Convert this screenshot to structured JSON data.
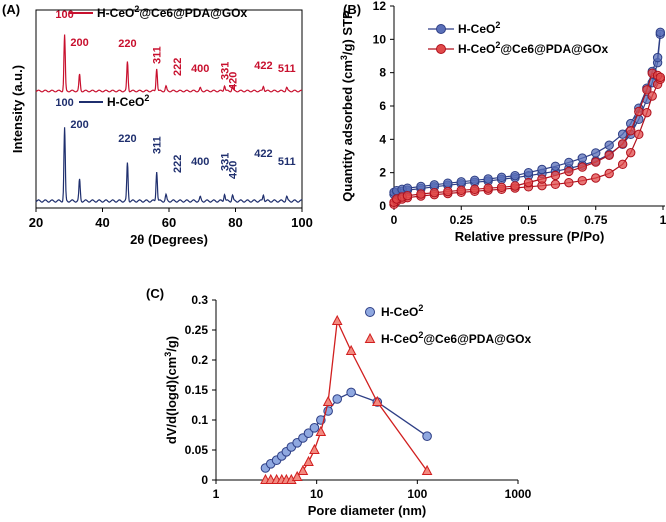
{
  "chart_data": [
    {
      "panel": "(A)",
      "type": "line",
      "title": "",
      "xlabel": "2θ (Degrees)",
      "ylabel": "Intensity (a.u.)",
      "xlim": [
        20,
        100
      ],
      "xticks": [
        "20",
        "40",
        "60",
        "80",
        "100"
      ],
      "series": [
        {
          "name": "H-CeO2@Ce6@PDA@GOx",
          "color": "#c8102e",
          "x": [
            20,
            28.6,
            33.1,
            47.5,
            56.3,
            59.1,
            69.4,
            76.7,
            79.1,
            88.4,
            95.4,
            100
          ],
          "y": [
            0,
            1.0,
            0.29,
            0.52,
            0.41,
            0.08,
            0.05,
            0.1,
            0.08,
            0.09,
            0.06,
            0
          ],
          "peak_labels": [
            "100",
            "200",
            "220",
            "311",
            "222",
            "400",
            "331",
            "420",
            "422",
            "511"
          ]
        },
        {
          "name": "H-CeO2",
          "color": "#1f2f6e",
          "x": [
            20,
            28.6,
            33.1,
            47.5,
            56.3,
            59.1,
            69.4,
            76.7,
            79.1,
            88.4,
            95.4,
            100
          ],
          "y": [
            0,
            1.0,
            0.29,
            0.52,
            0.41,
            0.08,
            0.05,
            0.1,
            0.08,
            0.09,
            0.06,
            0
          ],
          "peak_labels": [
            "100",
            "200",
            "220",
            "311",
            "222",
            "400",
            "331",
            "420",
            "422",
            "511"
          ]
        }
      ],
      "legend": [
        {
          "name": "H-CeO",
          "sub": "2",
          "tail": "@Ce6@PDA@GOx",
          "color": "#c8102e"
        },
        {
          "name": "H-CeO",
          "sub": "2",
          "tail": "",
          "color": "#1f2f6e"
        }
      ]
    },
    {
      "panel": "(B)",
      "type": "line",
      "title": "",
      "xlabel": "Relative pressure (P/Po)",
      "ylabel_parts": [
        "Quantity adsorbed (cm",
        "3",
        "/g) STP"
      ],
      "xlim": [
        0,
        1
      ],
      "ylim": [
        0,
        12
      ],
      "xticks": [
        "0",
        "0.25",
        "0.5",
        "0.75",
        "1"
      ],
      "yticks": [
        "0",
        "2",
        "4",
        "6",
        "8",
        "10",
        "12"
      ],
      "series": [
        {
          "name": "H-CeO2",
          "color": "#2e3f86",
          "fill": "#5a6fb8",
          "x": [
            0.0,
            0.01,
            0.03,
            0.05,
            0.1,
            0.15,
            0.2,
            0.25,
            0.3,
            0.35,
            0.4,
            0.45,
            0.5,
            0.55,
            0.6,
            0.65,
            0.7,
            0.75,
            0.8,
            0.85,
            0.88,
            0.91,
            0.94,
            0.96,
            0.98,
            0.99
          ],
          "y": [
            0.7,
            0.8,
            0.88,
            0.95,
            1.05,
            1.15,
            1.25,
            1.33,
            1.42,
            1.5,
            1.6,
            1.7,
            1.82,
            1.95,
            2.08,
            2.25,
            2.45,
            2.7,
            3.1,
            3.7,
            4.3,
            5.2,
            6.4,
            7.4,
            8.6,
            10.3
          ]
        },
        {
          "name": "H-CeO2@Ce6@PDA@GOx",
          "color": "#b0101c",
          "fill": "#e04a4a",
          "x": [
            0.0,
            0.01,
            0.03,
            0.05,
            0.1,
            0.15,
            0.2,
            0.25,
            0.3,
            0.35,
            0.4,
            0.45,
            0.5,
            0.55,
            0.6,
            0.65,
            0.7,
            0.75,
            0.8,
            0.85,
            0.88,
            0.91,
            0.94,
            0.96,
            0.98,
            0.99
          ],
          "y": [
            0.1,
            0.3,
            0.42,
            0.5,
            0.6,
            0.68,
            0.75,
            0.82,
            0.88,
            0.95,
            1.0,
            1.08,
            1.15,
            1.22,
            1.3,
            1.4,
            1.52,
            1.68,
            1.95,
            2.5,
            3.2,
            4.3,
            5.6,
            6.6,
            7.3,
            7.6
          ]
        }
      ],
      "legend": [
        {
          "name": "H-CeO",
          "sub": "2",
          "tail": "",
          "color": "#2e3f86",
          "fill": "#5a6fb8"
        },
        {
          "name": "H-CeO",
          "sub": "2",
          "tail": "@Ce6@PDA@GOx",
          "color": "#b0101c",
          "fill": "#e04a4a"
        }
      ]
    },
    {
      "panel": "(C)",
      "type": "line",
      "title": "",
      "xlabel": "Pore diameter (nm)",
      "ylabel_parts": [
        "dV/d(logd)(cm",
        "3",
        "/g)"
      ],
      "xscale": "log",
      "xlim": [
        1,
        1000
      ],
      "ylim": [
        0,
        0.3
      ],
      "xticks": [
        "1",
        "10",
        "100",
        "1000"
      ],
      "yticks": [
        "0",
        "0.05",
        "0.1",
        "0.15",
        "0.2",
        "0.25",
        "0.3"
      ],
      "series": [
        {
          "name": "H-CeO2",
          "marker": "circle",
          "color": "#2e3f86",
          "fill": "#8fa8e0",
          "x": [
            3.1,
            3.5,
            4.0,
            4.5,
            5.0,
            5.6,
            6.4,
            7.3,
            8.3,
            9.5,
            11,
            13,
            16,
            22,
            40,
            125
          ],
          "y": [
            0.02,
            0.027,
            0.033,
            0.04,
            0.047,
            0.055,
            0.062,
            0.07,
            0.078,
            0.087,
            0.1,
            0.115,
            0.135,
            0.146,
            0.13,
            0.073
          ]
        },
        {
          "name": "H-CeO2@Ce6@PDA@GOx",
          "marker": "triangle",
          "color": "#d11f1f",
          "fill": "#f28a80",
          "x": [
            3.1,
            3.5,
            4.0,
            4.5,
            5.0,
            5.6,
            6.4,
            7.3,
            8.3,
            9.5,
            11,
            13,
            16,
            22,
            40,
            125
          ],
          "y": [
            0,
            0,
            0,
            0,
            0,
            0,
            0.005,
            0.015,
            0.03,
            0.05,
            0.08,
            0.13,
            0.265,
            0.215,
            0.13,
            0.015
          ]
        }
      ],
      "legend": [
        {
          "name": "H-CeO",
          "sub": "2",
          "tail": "",
          "color": "#2e3f86",
          "fill": "#8fa8e0",
          "marker": "circle"
        },
        {
          "name": "H-CeO",
          "sub": "2",
          "tail": "@Ce6@PDA@GOx",
          "color": "#d11f1f",
          "fill": "#f28a80",
          "marker": "triangle"
        }
      ]
    }
  ]
}
